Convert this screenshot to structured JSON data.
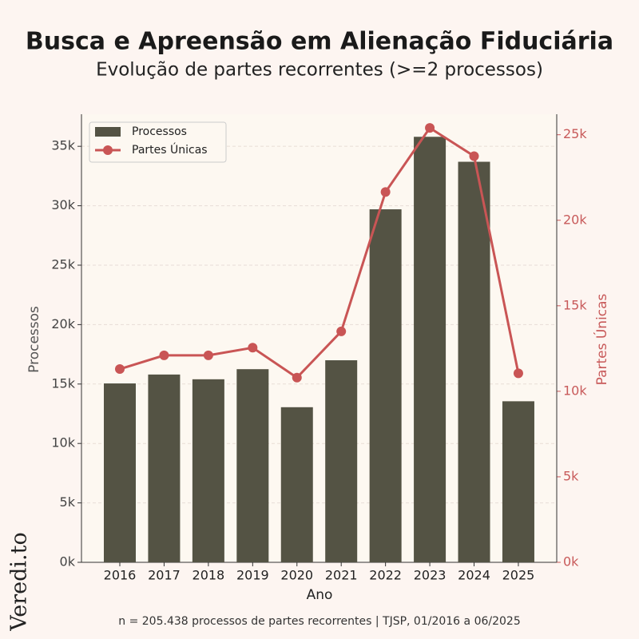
{
  "chart_data": {
    "type": "bar_line",
    "title": "Busca e Apreensão em Alienação Fiduciária",
    "subtitle": "Evolução de partes recorrentes (>=2 processos)",
    "x_label": "Ano",
    "y_label": "Processos",
    "y2_label": "Partes Únicas",
    "footnote": "n = 205.438 processos de partes recorrentes | TJSP, 01/2016 a 06/2025",
    "watermark": "Veredi.to",
    "categories": [
      "2016",
      "2017",
      "2018",
      "2019",
      "2020",
      "2021",
      "2022",
      "2023",
      "2024",
      "2025"
    ],
    "series": [
      {
        "name": "Processos",
        "type": "bar",
        "color": "#545344",
        "values": [
          15050,
          15800,
          15400,
          16250,
          13050,
          17000,
          29700,
          35800,
          33700,
          13550
        ]
      },
      {
        "name": "Partes Únicas",
        "type": "line",
        "axis": "y2",
        "color": "#c95555",
        "values": [
          11300,
          12100,
          12100,
          12550,
          10800,
          13500,
          21650,
          25400,
          23750,
          11050
        ]
      }
    ],
    "ylim": [
      0,
      37700
    ],
    "yticks": [
      {
        "value": 0,
        "label": "0k"
      },
      {
        "value": 5000,
        "label": "5k"
      },
      {
        "value": 10000,
        "label": "10k"
      },
      {
        "value": 15000,
        "label": "15k"
      },
      {
        "value": 20000,
        "label": "20k"
      },
      {
        "value": 25000,
        "label": "25k"
      },
      {
        "value": 30000,
        "label": "30k"
      },
      {
        "value": 35000,
        "label": "35k"
      }
    ],
    "y2lim": [
      0,
      26200
    ],
    "y2ticks": [
      {
        "value": 0,
        "label": "0k"
      },
      {
        "value": 5000,
        "label": "5k"
      },
      {
        "value": 10000,
        "label": "10k"
      },
      {
        "value": 15000,
        "label": "15k"
      },
      {
        "value": 20000,
        "label": "20k"
      },
      {
        "value": 25000,
        "label": "25k"
      }
    ],
    "grid": true,
    "legend": "upper left"
  }
}
